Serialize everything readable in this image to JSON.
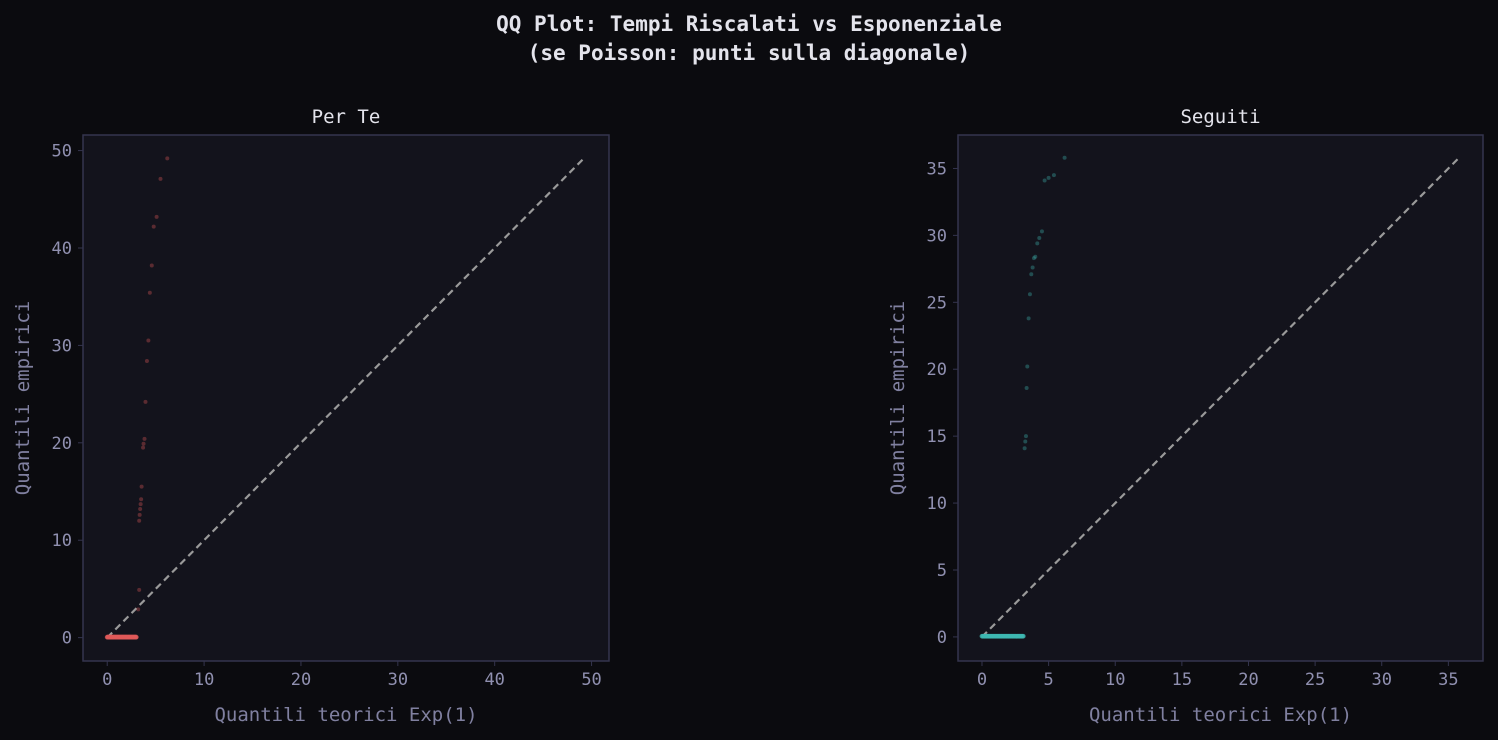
{
  "title_line1": "QQ Plot: Tempi Riscalati vs Esponenziale",
  "title_line2": "(se Poisson: punti sulla diagonale)",
  "colors": {
    "background": "#0b0b0f",
    "axes_face": "#13131c",
    "axes_edge": "#34344e",
    "tick_label": "#9090b0",
    "axis_label": "#8080a0",
    "title": "#e4e4ec",
    "diagonal": "#9a9a9a"
  },
  "chart_data": [
    {
      "type": "scatter",
      "title": "Per Te",
      "xlabel": "Quantili teorici Exp(1)",
      "ylabel": "Quantili empirici",
      "xlim": [
        -2.5,
        51.8
      ],
      "ylim": [
        -2.4,
        51.6
      ],
      "xticks": [
        0,
        10,
        20,
        30,
        40,
        50
      ],
      "yticks": [
        0,
        10,
        20,
        30,
        40,
        50
      ],
      "color": "#e05a5a",
      "diagonal": [
        0,
        49.2
      ],
      "cluster": {
        "x_start": 0.0,
        "x_end": 3.0,
        "y": 0.05
      },
      "points": [
        [
          3.2,
          2.9
        ],
        [
          3.3,
          4.9
        ],
        [
          3.3,
          12.0
        ],
        [
          3.35,
          12.6
        ],
        [
          3.4,
          13.2
        ],
        [
          3.45,
          13.7
        ],
        [
          3.5,
          14.2
        ],
        [
          3.55,
          15.5
        ],
        [
          3.7,
          19.5
        ],
        [
          3.75,
          19.9
        ],
        [
          3.85,
          20.4
        ],
        [
          3.95,
          24.2
        ],
        [
          4.1,
          28.4
        ],
        [
          4.25,
          30.5
        ],
        [
          4.4,
          35.4
        ],
        [
          4.6,
          38.2
        ],
        [
          4.8,
          42.2
        ],
        [
          5.1,
          43.2
        ],
        [
          5.5,
          47.1
        ],
        [
          6.2,
          49.2
        ]
      ]
    },
    {
      "type": "scatter",
      "title": "Seguiti",
      "xlabel": "Quantili teorici Exp(1)",
      "ylabel": "Quantili empirici",
      "xlim": [
        -1.8,
        37.6
      ],
      "ylim": [
        -1.8,
        37.5
      ],
      "xticks": [
        0,
        5,
        10,
        15,
        20,
        25,
        30,
        35
      ],
      "yticks": [
        0,
        5,
        10,
        15,
        20,
        25,
        30,
        35
      ],
      "color": "#3fb8b2",
      "diagonal": [
        0,
        35.7
      ],
      "cluster": {
        "x_start": 0.0,
        "x_end": 3.1,
        "y": 0.05
      },
      "points": [
        [
          3.2,
          14.1
        ],
        [
          3.25,
          14.6
        ],
        [
          3.3,
          15.0
        ],
        [
          3.35,
          18.6
        ],
        [
          3.4,
          20.2
        ],
        [
          3.5,
          23.8
        ],
        [
          3.6,
          25.6
        ],
        [
          3.7,
          27.1
        ],
        [
          3.8,
          27.6
        ],
        [
          3.9,
          28.3
        ],
        [
          4.0,
          28.4
        ],
        [
          4.15,
          29.4
        ],
        [
          4.3,
          29.8
        ],
        [
          4.5,
          30.3
        ],
        [
          4.7,
          34.1
        ],
        [
          5.0,
          34.3
        ],
        [
          5.4,
          34.5
        ],
        [
          6.2,
          35.8
        ]
      ]
    }
  ]
}
